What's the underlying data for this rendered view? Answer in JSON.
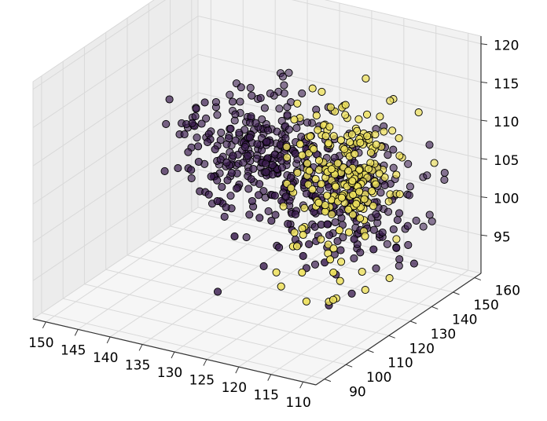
{
  "chart_data": {
    "type": "scatter",
    "title": "",
    "projection": "3d",
    "grid": true,
    "pane_color": "#f2f2f2",
    "grid_color": "#d9d9d9",
    "axes": {
      "x": {
        "label": "",
        "ticks": [
          150,
          145,
          140,
          135,
          130,
          125,
          120,
          115,
          110
        ],
        "range": [
          152,
          108
        ]
      },
      "y": {
        "label": "",
        "ticks": [
          90,
          100,
          110,
          120,
          130,
          140,
          150,
          160
        ],
        "range": [
          86,
          163
        ]
      },
      "z": {
        "label": "",
        "ticks": [
          95,
          100,
          105,
          110,
          115,
          120
        ],
        "range": [
          90,
          121
        ]
      }
    },
    "series": [
      {
        "color": "#3b1d4f",
        "edge_color": "#000000",
        "clusters": [
          {
            "center": [
              140,
              150,
              104
            ],
            "spread": [
              5,
              10,
              3
            ],
            "n": 200
          },
          {
            "center": [
              128,
              145,
              103
            ],
            "spread": [
              7,
              10,
              3
            ],
            "n": 220
          },
          {
            "center": [
              120,
              138,
              99
            ],
            "spread": [
              6,
              12,
              3
            ],
            "n": 90
          },
          {
            "center": [
              132,
              155,
              97
            ],
            "spread": [
              6,
              8,
              2
            ],
            "n": 50
          }
        ]
      },
      {
        "color": "#ede05c",
        "edge_color": "#000000",
        "clusters": [
          {
            "center": [
              116,
              122,
              113
            ],
            "spread": [
              3,
              8,
              3
            ],
            "n": 90
          },
          {
            "center": [
              112,
              112,
              110
            ],
            "spread": [
              3,
              6,
              2
            ],
            "n": 70
          },
          {
            "center": [
              118,
              128,
              106
            ],
            "spread": [
              4,
              10,
              3
            ],
            "n": 50
          },
          {
            "center": [
              115,
              115,
              98
            ],
            "spread": [
              4,
              10,
              3
            ],
            "n": 25
          }
        ]
      }
    ]
  }
}
